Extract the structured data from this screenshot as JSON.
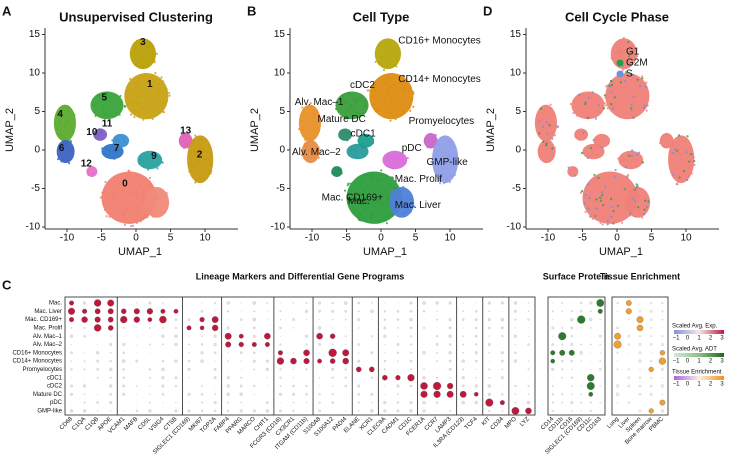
{
  "panels": [
    {
      "letter": "A",
      "title": "Unsupervised Clustering",
      "x_label": "UMAP_1",
      "y_label": "UMAP_2",
      "xticks": [
        "-10",
        "-5",
        "0",
        "5",
        "10"
      ],
      "yticks": [
        "15",
        "10",
        "5",
        "0",
        "-5",
        "-10"
      ],
      "labels": [
        "3",
        "1",
        "5",
        "4",
        "11",
        "10",
        "6",
        "7",
        "13",
        "9",
        "12",
        "2",
        "0"
      ]
    },
    {
      "letter": "B",
      "title": "Cell Type",
      "x_label": "UMAP_1",
      "y_label": "UMAP_2",
      "xticks": [
        "-10",
        "-5",
        "0",
        "5",
        "10"
      ],
      "yticks": [
        "15",
        "10",
        "5",
        "0",
        "-5",
        "-10"
      ],
      "labels": [
        "CD16+ Monocytes",
        "CD14+ Monocytes",
        "cDC2",
        "Alv. Mac–1",
        "Mature DC",
        "Promyelocytes",
        "cDC1",
        "pDC",
        "Alv. Mac–2",
        "GMP-like",
        "Mac. Prolif",
        "Mac. CD169+",
        "Mac.",
        "Mac. Liver"
      ]
    },
    {
      "letter": "D",
      "title": "Cell Cycle Phase",
      "x_label": "UMAP_1",
      "y_label": "UMAP_2",
      "xticks": [
        "-10",
        "-5",
        "0",
        "5",
        "10"
      ],
      "yticks": [
        "15",
        "10",
        "5",
        "0",
        "-5",
        "-10"
      ],
      "labels": [
        "G1",
        "G2M",
        "S"
      ]
    }
  ],
  "dotplot": {
    "letter": "C",
    "title": "Lineage Markers and Differential Gene Programs",
    "rows": [
      "Mac.",
      "Mac. Liver",
      "Mac. CD169+",
      "Mac. Prolif",
      "Alv. Mac–1",
      "Alv. Mac–2",
      "CD16+ Monocytes",
      "CD14+ Monocytes",
      "Promyelocytes",
      "cDC1",
      "cDC2",
      "Mature DC",
      "pDC",
      "GMP-like"
    ],
    "genes": [
      "CD68",
      "C1QA",
      "C1QB",
      "APOE",
      "VCAM1",
      "MAFB",
      "CD5L",
      "VSIG4",
      "CTSB",
      "SIGLEC1 (CD169)",
      "MKI67",
      "TOP2A",
      "FABP4",
      "PPARG",
      "MARCO",
      "CHIT1",
      "FCGR3 (CD16)",
      "CX3CR1",
      "ITGAM (CD11b)",
      "S100A8",
      "S100A12",
      "PADI4",
      "ELANE",
      "XCR1",
      "CLEC9A",
      "CADM1",
      "CD1C",
      "FCER1A",
      "CCR7",
      "LAMP3",
      "IL3RA (CD123)",
      "TCF4",
      "KIT",
      "CD34",
      "MPO",
      "LYZ"
    ],
    "protein_title": "Surface Protein",
    "proteins": [
      "CD14",
      "CD11b",
      "CD16",
      "SIGLEC1 (CD169)",
      "CD11c",
      "CD163"
    ],
    "tissue_title": "Tissue Enrichment",
    "tissues": [
      "Lung",
      "Liver",
      "Spleen",
      "Bone marrow",
      "PBMC"
    ],
    "legend_titles": [
      "Scaled Avg. Exp.",
      "Scaled Avg. ADT",
      "Tissue Enrichment"
    ],
    "legend_ticks": [
      "−1",
      "0",
      "1",
      "2",
      "3"
    ]
  }
}
